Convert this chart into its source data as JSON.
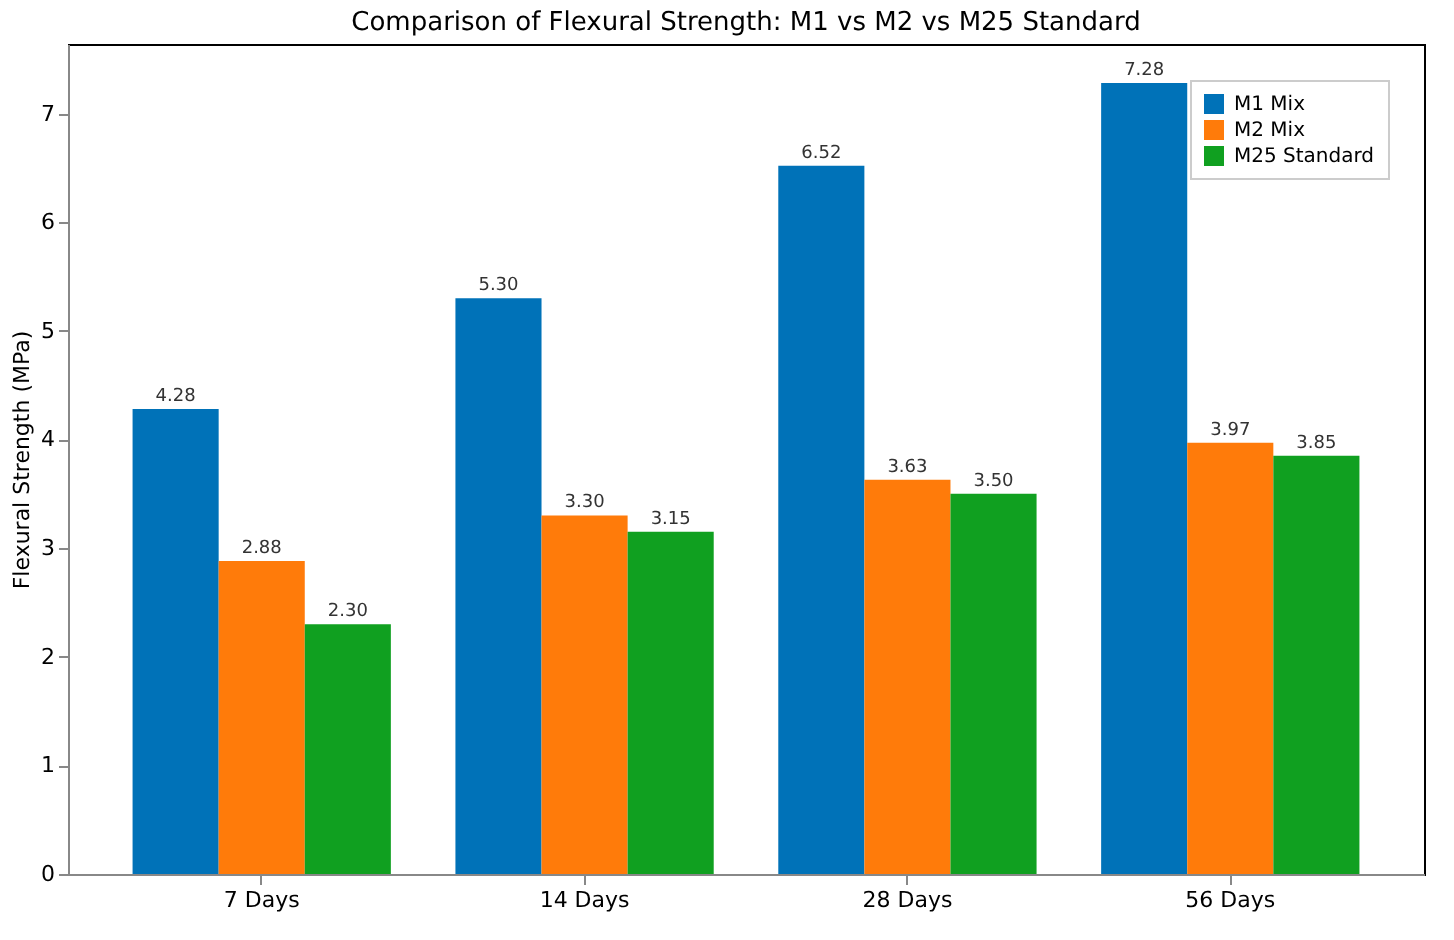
{
  "chart_data": {
    "type": "bar",
    "title": "Comparison of Flexural Strength: M1 vs M2 vs M25 Standard",
    "ylabel": "Flexural Strength (MPa)",
    "categories": [
      "7 Days",
      "14 Days",
      "28 Days",
      "56 Days"
    ],
    "series": [
      {
        "name": "M1 Mix",
        "color": "#0072b8",
        "values": [
          4.28,
          5.3,
          6.52,
          7.28
        ],
        "value_labels": [
          "4.28",
          "5.30",
          "6.52",
          "7.28"
        ]
      },
      {
        "name": "M2 Mix",
        "color": "#ff7b0a",
        "values": [
          2.88,
          3.3,
          3.63,
          3.97
        ],
        "value_labels": [
          "2.88",
          "3.30",
          "3.63",
          "3.97"
        ]
      },
      {
        "name": "M25 Standard",
        "color": "#10a020",
        "values": [
          2.3,
          3.15,
          3.5,
          3.85
        ],
        "value_labels": [
          "2.30",
          "3.15",
          "3.50",
          "3.85"
        ]
      }
    ],
    "ylim": [
      0,
      7.64
    ],
    "yticks": [
      0,
      1,
      2,
      3,
      4,
      5,
      6,
      7
    ],
    "grid": false,
    "legend": "top right"
  }
}
